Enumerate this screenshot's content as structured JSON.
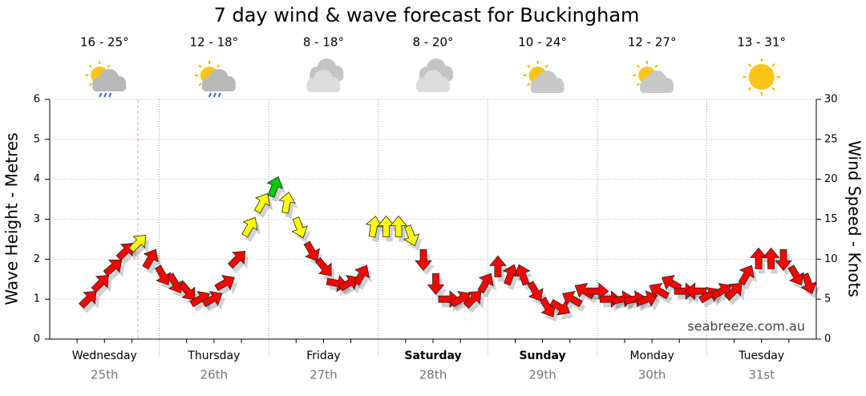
{
  "chart_data": {
    "type": "wind_arrows",
    "title": "7 day wind & wave forecast for Buckingham",
    "ylabel": "Wave Height - Metres",
    "y2label": "Wind Speed - Knots",
    "watermark": "seabreeze.com.au",
    "ylim": [
      0,
      6
    ],
    "yticks": [
      0,
      1,
      2,
      3,
      4,
      5,
      6
    ],
    "y2lim": [
      0,
      30
    ],
    "y2ticks": [
      0,
      5,
      10,
      15,
      20,
      25,
      30
    ],
    "grid": true,
    "days": [
      {
        "name": "Wednesday",
        "date": "25th",
        "temp": "16 - 25°",
        "icon": "sun-rain",
        "bold": false
      },
      {
        "name": "Thursday",
        "date": "26th",
        "temp": "12 - 18°",
        "icon": "sun-rain",
        "bold": false
      },
      {
        "name": "Friday",
        "date": "27th",
        "temp": "8 - 18°",
        "icon": "cloud",
        "bold": false
      },
      {
        "name": "Saturday",
        "date": "28th",
        "temp": "8 - 20°",
        "icon": "cloud",
        "bold": true
      },
      {
        "name": "Sunday",
        "date": "29th",
        "temp": "10 - 24°",
        "icon": "partly",
        "bold": true
      },
      {
        "name": "Monday",
        "date": "30th",
        "temp": "12 - 27°",
        "icon": "partly",
        "bold": false
      },
      {
        "name": "Tuesday",
        "date": "31st",
        "temp": "13 - 31°",
        "icon": "sun",
        "bold": false
      }
    ],
    "series": [
      {
        "name": "Wind",
        "axis": "y2",
        "values": [
          5,
          7,
          9,
          11,
          12,
          10,
          8,
          7,
          6,
          5,
          5,
          7,
          10,
          14,
          17,
          19,
          17,
          14,
          11,
          9,
          7,
          7,
          8,
          14,
          14,
          14,
          13,
          10,
          7,
          5,
          5,
          5,
          7,
          9,
          8,
          8,
          6,
          4,
          4,
          5,
          6,
          6,
          5,
          5,
          5,
          5,
          6,
          7,
          6,
          6,
          5.5,
          6,
          6,
          8,
          10,
          10,
          10,
          8,
          7
        ],
        "directions": [
          45,
          45,
          50,
          45,
          45,
          30,
          150,
          150,
          140,
          60,
          60,
          60,
          45,
          30,
          30,
          20,
          10,
          160,
          150,
          140,
          100,
          60,
          30,
          10,
          0,
          0,
          160,
          180,
          180,
          90,
          60,
          45,
          30,
          0,
          20,
          340,
          150,
          150,
          120,
          300,
          300,
          90,
          90,
          80,
          80,
          70,
          300,
          300,
          90,
          270,
          60,
          60,
          45,
          30,
          0,
          0,
          180,
          150,
          160
        ],
        "colors": [
          "#ff0000",
          "#ff0000",
          "#ff0000",
          "#ff0000",
          "#ffff00",
          "#ff0000",
          "#ff0000",
          "#ff0000",
          "#ff0000",
          "#ff0000",
          "#ff0000",
          "#ff0000",
          "#ff0000",
          "#ffff00",
          "#ffff00",
          "#00cc00",
          "#ffff00",
          "#ffff00",
          "#ff0000",
          "#ff0000",
          "#ff0000",
          "#ff0000",
          "#ff0000",
          "#ffff00",
          "#ffff00",
          "#ffff00",
          "#ffff00",
          "#ff0000",
          "#ff0000",
          "#ff0000",
          "#ff0000",
          "#ff0000",
          "#ff0000",
          "#ff0000",
          "#ff0000",
          "#ff0000",
          "#ff0000",
          "#ff0000",
          "#ff0000",
          "#ff0000",
          "#ff0000",
          "#ff0000",
          "#ff0000",
          "#ff0000",
          "#ff0000",
          "#ff0000",
          "#ff0000",
          "#ff0000",
          "#ff0000",
          "#ff0000",
          "#ff0000",
          "#ff0000",
          "#ff0000",
          "#ff0000",
          "#ff0000",
          "#ff0000",
          "#ff0000",
          "#ff0000",
          "#ff0000"
        ]
      }
    ]
  }
}
